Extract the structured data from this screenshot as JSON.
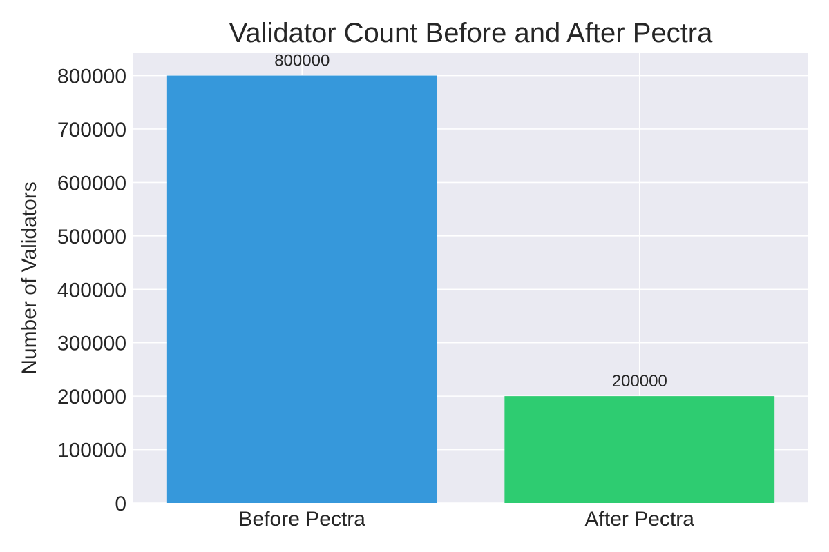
{
  "chart_data": {
    "type": "bar",
    "title": "Validator Count Before and After Pectra",
    "xlabel": "",
    "ylabel": "Number of Validators",
    "categories": [
      "Before Pectra",
      "After Pectra"
    ],
    "values": [
      800000,
      200000
    ],
    "data_labels": [
      "800000",
      "200000"
    ],
    "colors": [
      "#3698db",
      "#2ecc71"
    ],
    "ylim": [
      0,
      842000
    ],
    "yticks": [
      0,
      100000,
      200000,
      300000,
      400000,
      500000,
      600000,
      700000,
      800000
    ],
    "ytick_labels": [
      "0",
      "100000",
      "200000",
      "300000",
      "400000",
      "500000",
      "600000",
      "700000",
      "800000"
    ],
    "grid": true,
    "plot_background": "#eaeaf2",
    "grid_color": "#ffffff",
    "text_color": "#262626"
  }
}
